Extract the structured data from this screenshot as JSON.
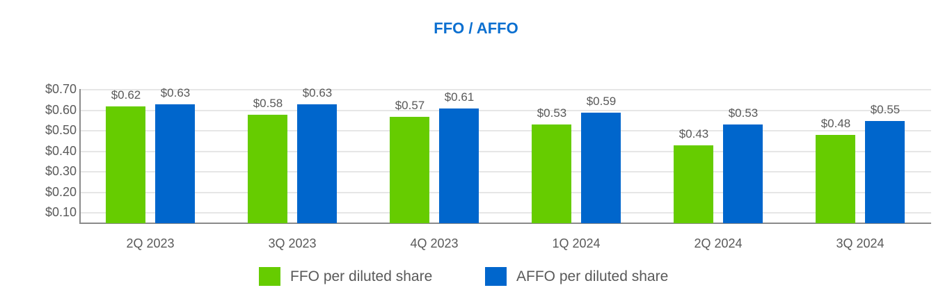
{
  "chart_data": {
    "type": "bar",
    "title": "FFO / AFFO",
    "xlabel": "",
    "ylabel": "",
    "ylim": [
      0.05,
      0.7
    ],
    "yticks": [
      "$0.10",
      "$0.20",
      "$0.30",
      "$0.40",
      "$0.50",
      "$0.60",
      "$0.70"
    ],
    "grid": true,
    "legend_position": "bottom",
    "categories": [
      "2Q 2023",
      "3Q 2023",
      "4Q 2023",
      "1Q 2024",
      "2Q 2024",
      "3Q 2024"
    ],
    "series": [
      {
        "name": "FFO per diluted share",
        "color": "#66cc00",
        "values": [
          0.62,
          0.58,
          0.57,
          0.53,
          0.43,
          0.48
        ],
        "labels": [
          "$0.62",
          "$0.58",
          "$0.57",
          "$0.53",
          "$0.43",
          "$0.48"
        ]
      },
      {
        "name": "AFFO per diluted share",
        "color": "#0066cc",
        "values": [
          0.63,
          0.63,
          0.61,
          0.59,
          0.53,
          0.55
        ],
        "labels": [
          "$0.63",
          "$0.63",
          "$0.61",
          "$0.59",
          "$0.53",
          "$0.55"
        ]
      }
    ]
  }
}
